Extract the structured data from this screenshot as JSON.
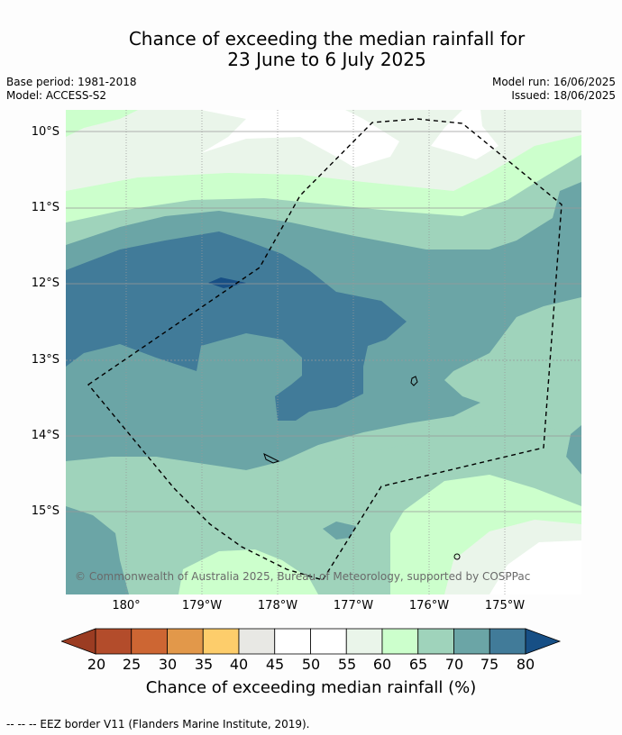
{
  "title": {
    "line1": "Chance of exceeding the median rainfall for",
    "line2": "23 June to 6 July 2025"
  },
  "meta": {
    "base_period": "Base period: 1981-2018",
    "model": "Model: ACCESS-S2",
    "model_run": "Model run: 16/06/2025",
    "issued": "Issued: 18/06/2025"
  },
  "map": {
    "latitude_labels": [
      "10°S",
      "11°S",
      "12°S",
      "13°S",
      "14°S",
      "15°S"
    ],
    "longitude_labels": [
      "180°",
      "179°W",
      "178°W",
      "177°W",
      "176°W",
      "175°W"
    ],
    "copyright": "© Commonwealth of Australia 2025, Bureau of Meteorology, supported by COSPPac",
    "zone_colors": {
      "p55_60": "#eaf5ea",
      "p60_65": "#ccffcc",
      "p65_70": "#9fd3bb",
      "p70_75": "#6ba5a6",
      "p75_80": "#417b99",
      "p80plus": "#174f85",
      "p50_55": "#ffffff"
    },
    "eez_color": "#000000",
    "graticule_color": "#999999"
  },
  "colorbar": {
    "ticks": [
      "20",
      "25",
      "30",
      "35",
      "40",
      "45",
      "50",
      "55",
      "60",
      "65",
      "70",
      "75",
      "80"
    ],
    "colors": [
      "#9b3c22",
      "#b34c2b",
      "#cd6633",
      "#e2984a",
      "#fdcd6b",
      "#e8e8e4",
      "#ffffff",
      "#ffffff",
      "#eaf5ea",
      "#ccffcc",
      "#9fd3bb",
      "#6ba5a6",
      "#417b99",
      "#174f85"
    ],
    "label": "Chance of exceeding median rainfall (%)"
  },
  "footnote": "--  --  -- EEZ border V11 (Flanders Marine Institute, 2019)."
}
